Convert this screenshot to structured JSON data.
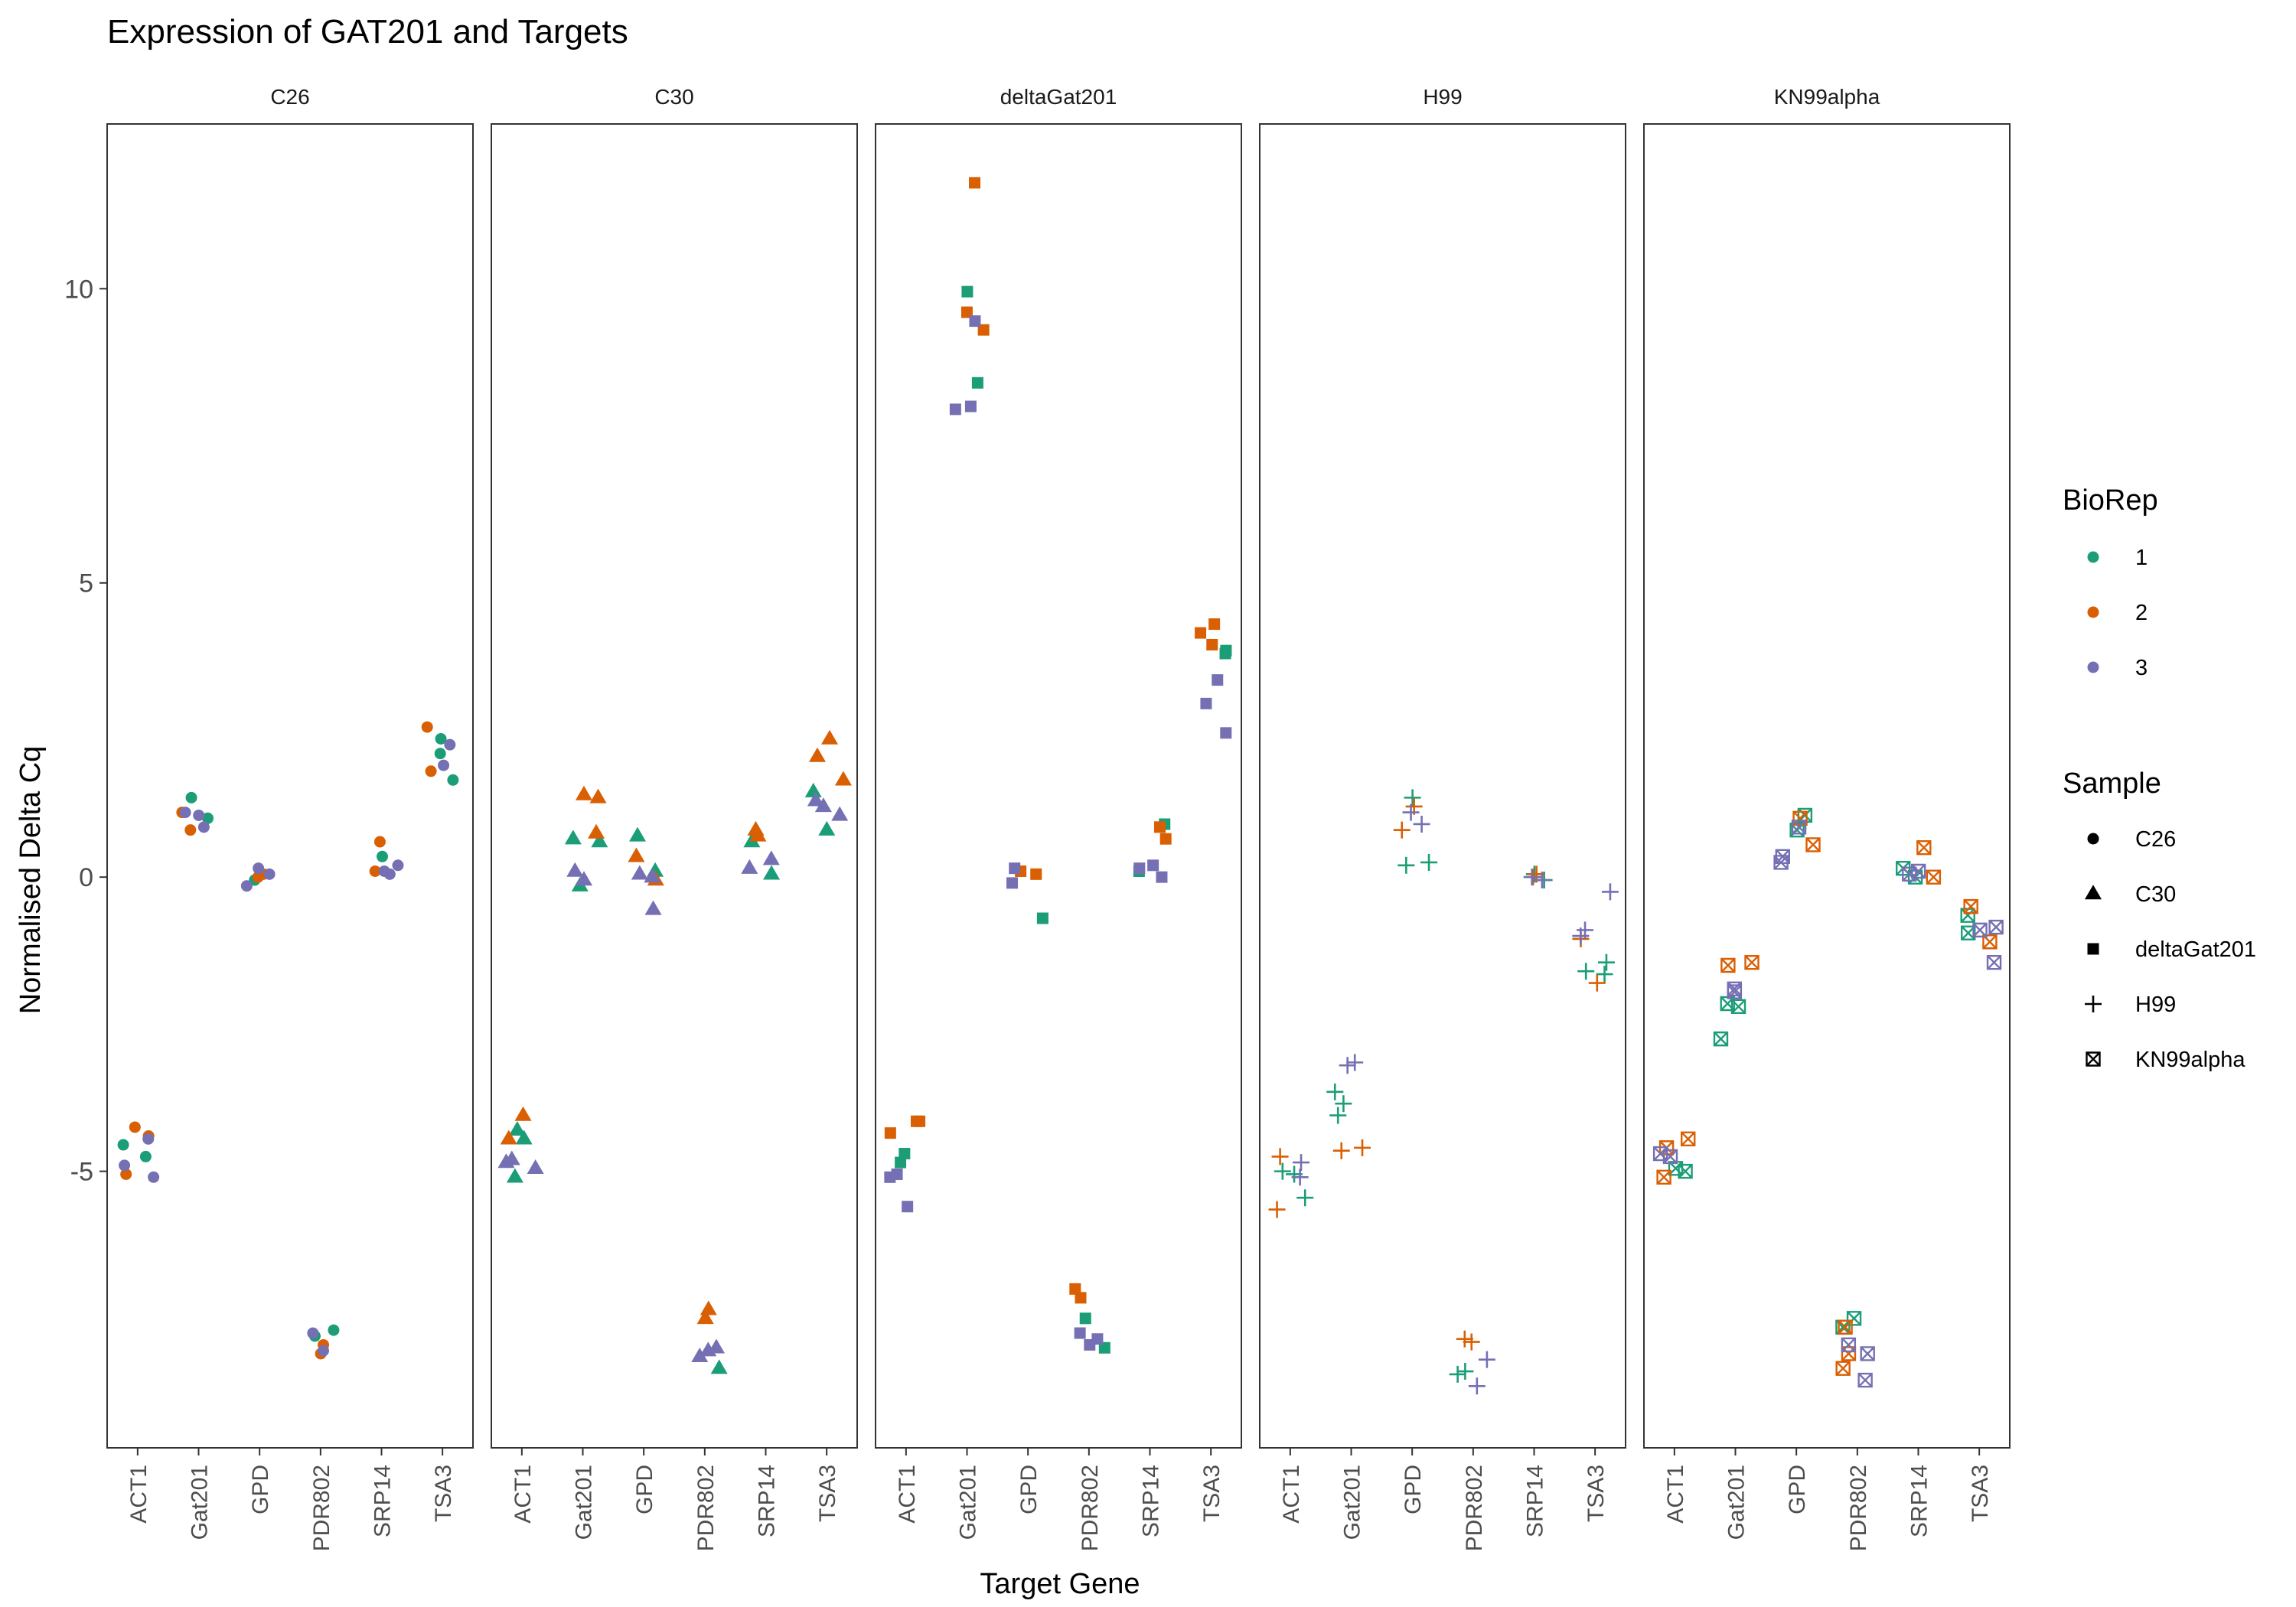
{
  "chart_data": {
    "type": "scatter",
    "title": "Expression of GAT201 and Targets",
    "xlabel": "Target Gene",
    "ylabel": "Normalised Delta Cq",
    "ylim": [
      -9.7,
      12.8
    ],
    "yticks": [
      -5,
      0,
      5,
      10
    ],
    "grid": false,
    "legend_position": "right",
    "categories": [
      "ACT1",
      "Gat201",
      "GPD",
      "PDR802",
      "SRP14",
      "TSA3"
    ],
    "panels": [
      "C26",
      "C30",
      "deltaGat201",
      "H99",
      "KN99alpha"
    ],
    "legends": {
      "biorep": {
        "title": "BioRep",
        "entries": [
          {
            "label": "1",
            "color": "#1b9e77"
          },
          {
            "label": "2",
            "color": "#d95f02"
          },
          {
            "label": "3",
            "color": "#7570b3"
          }
        ]
      },
      "sample": {
        "title": "Sample",
        "entries": [
          {
            "label": "C26",
            "shape": "circle"
          },
          {
            "label": "C30",
            "shape": "triangle"
          },
          {
            "label": "deltaGat201",
            "shape": "square"
          },
          {
            "label": "H99",
            "shape": "plus"
          },
          {
            "label": "KN99alpha",
            "shape": "boxcross"
          }
        ]
      }
    },
    "series": [
      {
        "panel": "C26",
        "shape": "circle",
        "data": [
          [
            "ACT1",
            1,
            -4.75
          ],
          [
            "ACT1",
            1,
            -4.55
          ],
          [
            "ACT1",
            2,
            -4.25
          ],
          [
            "ACT1",
            2,
            -4.4
          ],
          [
            "ACT1",
            2,
            -5.05
          ],
          [
            "ACT1",
            3,
            -4.45
          ],
          [
            "ACT1",
            3,
            -4.9
          ],
          [
            "ACT1",
            3,
            -5.1
          ],
          [
            "Gat201",
            1,
            1.35
          ],
          [
            "Gat201",
            1,
            1.0
          ],
          [
            "Gat201",
            2,
            1.1
          ],
          [
            "Gat201",
            2,
            0.8
          ],
          [
            "Gat201",
            3,
            0.85
          ],
          [
            "Gat201",
            3,
            1.05
          ],
          [
            "Gat201",
            3,
            1.1
          ],
          [
            "GPD",
            1,
            -0.05
          ],
          [
            "GPD",
            2,
            0.05
          ],
          [
            "GPD",
            2,
            0.0
          ],
          [
            "GPD",
            3,
            0.15
          ],
          [
            "GPD",
            3,
            -0.15
          ],
          [
            "GPD",
            3,
            0.05
          ],
          [
            "PDR802",
            1,
            -7.7
          ],
          [
            "PDR802",
            1,
            -7.8
          ],
          [
            "PDR802",
            2,
            -8.1
          ],
          [
            "PDR802",
            2,
            -7.95
          ],
          [
            "PDR802",
            3,
            -7.75
          ],
          [
            "PDR802",
            3,
            -8.05
          ],
          [
            "SRP14",
            1,
            0.35
          ],
          [
            "SRP14",
            2,
            0.6
          ],
          [
            "SRP14",
            2,
            0.1
          ],
          [
            "SRP14",
            3,
            0.2
          ],
          [
            "SRP14",
            3,
            0.05
          ],
          [
            "SRP14",
            3,
            0.1
          ],
          [
            "TSA3",
            1,
            2.35
          ],
          [
            "TSA3",
            1,
            2.1
          ],
          [
            "TSA3",
            1,
            1.65
          ],
          [
            "TSA3",
            2,
            2.55
          ],
          [
            "TSA3",
            2,
            1.8
          ],
          [
            "TSA3",
            3,
            1.9
          ],
          [
            "TSA3",
            3,
            2.25
          ]
        ]
      },
      {
        "panel": "C30",
        "shape": "triangle",
        "data": [
          [
            "ACT1",
            1,
            -4.45
          ],
          [
            "ACT1",
            1,
            -4.3
          ],
          [
            "ACT1",
            1,
            -5.1
          ],
          [
            "ACT1",
            2,
            -4.05
          ],
          [
            "ACT1",
            2,
            -4.45
          ],
          [
            "ACT1",
            3,
            -4.85
          ],
          [
            "ACT1",
            3,
            -4.95
          ],
          [
            "ACT1",
            3,
            -4.8
          ],
          [
            "Gat201",
            1,
            -0.15
          ],
          [
            "Gat201",
            1,
            0.6
          ],
          [
            "Gat201",
            1,
            0.65
          ],
          [
            "Gat201",
            2,
            1.4
          ],
          [
            "Gat201",
            2,
            1.35
          ],
          [
            "Gat201",
            2,
            0.75
          ],
          [
            "Gat201",
            3,
            0.1
          ],
          [
            "Gat201",
            3,
            -0.05
          ],
          [
            "GPD",
            1,
            0.1
          ],
          [
            "GPD",
            1,
            0.7
          ],
          [
            "GPD",
            2,
            -0.05
          ],
          [
            "GPD",
            2,
            0.35
          ],
          [
            "GPD",
            3,
            -0.55
          ],
          [
            "GPD",
            3,
            0.05
          ],
          [
            "GPD",
            3,
            0.0
          ],
          [
            "PDR802",
            1,
            -8.35
          ],
          [
            "PDR802",
            2,
            -7.5
          ],
          [
            "PDR802",
            2,
            -7.35
          ],
          [
            "PDR802",
            3,
            -8.15
          ],
          [
            "PDR802",
            3,
            -8.0
          ],
          [
            "PDR802",
            3,
            -8.05
          ],
          [
            "SRP14",
            1,
            0.6
          ],
          [
            "SRP14",
            1,
            0.05
          ],
          [
            "SRP14",
            2,
            0.8
          ],
          [
            "SRP14",
            2,
            0.7
          ],
          [
            "SRP14",
            3,
            0.3
          ],
          [
            "SRP14",
            3,
            0.15
          ],
          [
            "TSA3",
            1,
            0.8
          ],
          [
            "TSA3",
            1,
            1.45
          ],
          [
            "TSA3",
            2,
            2.35
          ],
          [
            "TSA3",
            2,
            2.05
          ],
          [
            "TSA3",
            2,
            1.65
          ],
          [
            "TSA3",
            3,
            1.2
          ],
          [
            "TSA3",
            3,
            1.05
          ],
          [
            "TSA3",
            3,
            1.3
          ]
        ]
      },
      {
        "panel": "deltaGat201",
        "shape": "square",
        "data": [
          [
            "ACT1",
            1,
            -4.7
          ],
          [
            "ACT1",
            1,
            -4.85
          ],
          [
            "ACT1",
            2,
            -4.15
          ],
          [
            "ACT1",
            2,
            -4.35
          ],
          [
            "ACT1",
            2,
            -4.15
          ],
          [
            "ACT1",
            3,
            -5.1
          ],
          [
            "ACT1",
            3,
            -5.6
          ],
          [
            "ACT1",
            3,
            -5.05
          ],
          [
            "Gat201",
            1,
            9.95
          ],
          [
            "Gat201",
            1,
            8.4
          ],
          [
            "Gat201",
            2,
            11.8
          ],
          [
            "Gat201",
            2,
            9.3
          ],
          [
            "Gat201",
            2,
            9.6
          ],
          [
            "Gat201",
            3,
            9.45
          ],
          [
            "Gat201",
            3,
            7.95
          ],
          [
            "Gat201",
            3,
            8.0
          ],
          [
            "GPD",
            1,
            -0.7
          ],
          [
            "GPD",
            2,
            0.1
          ],
          [
            "GPD",
            2,
            0.05
          ],
          [
            "GPD",
            3,
            -0.1
          ],
          [
            "GPD",
            3,
            0.15
          ],
          [
            "PDR802",
            1,
            -7.5
          ],
          [
            "PDR802",
            1,
            -8.0
          ],
          [
            "PDR802",
            2,
            -7.0
          ],
          [
            "PDR802",
            2,
            -7.15
          ],
          [
            "PDR802",
            3,
            -7.75
          ],
          [
            "PDR802",
            3,
            -7.85
          ],
          [
            "PDR802",
            3,
            -7.95
          ],
          [
            "SRP14",
            1,
            0.9
          ],
          [
            "SRP14",
            1,
            0.1
          ],
          [
            "SRP14",
            2,
            0.85
          ],
          [
            "SRP14",
            2,
            0.65
          ],
          [
            "SRP14",
            3,
            0.15
          ],
          [
            "SRP14",
            3,
            0.2
          ],
          [
            "SRP14",
            3,
            0.0
          ],
          [
            "TSA3",
            1,
            3.85
          ],
          [
            "TSA3",
            1,
            3.8
          ],
          [
            "TSA3",
            2,
            4.3
          ],
          [
            "TSA3",
            2,
            4.15
          ],
          [
            "TSA3",
            2,
            3.95
          ],
          [
            "TSA3",
            3,
            3.35
          ],
          [
            "TSA3",
            3,
            2.95
          ],
          [
            "TSA3",
            3,
            2.45
          ]
        ]
      },
      {
        "panel": "H99",
        "shape": "plus",
        "data": [
          [
            "ACT1",
            1,
            -5.0
          ],
          [
            "ACT1",
            1,
            -5.45
          ],
          [
            "ACT1",
            1,
            -5.05
          ],
          [
            "ACT1",
            2,
            -5.65
          ],
          [
            "ACT1",
            2,
            -4.75
          ],
          [
            "ACT1",
            3,
            -4.85
          ],
          [
            "ACT1",
            3,
            -5.1
          ],
          [
            "Gat201",
            1,
            -3.65
          ],
          [
            "Gat201",
            1,
            -4.05
          ],
          [
            "Gat201",
            1,
            -3.85
          ],
          [
            "Gat201",
            2,
            -4.6
          ],
          [
            "Gat201",
            2,
            -4.65
          ],
          [
            "Gat201",
            3,
            -3.2
          ],
          [
            "Gat201",
            3,
            -3.15
          ],
          [
            "GPD",
            1,
            1.35
          ],
          [
            "GPD",
            1,
            0.2
          ],
          [
            "GPD",
            1,
            0.25
          ],
          [
            "GPD",
            2,
            1.2
          ],
          [
            "GPD",
            2,
            0.8
          ],
          [
            "GPD",
            3,
            0.9
          ],
          [
            "GPD",
            3,
            1.1
          ],
          [
            "PDR802",
            1,
            -8.45
          ],
          [
            "PDR802",
            1,
            -8.4
          ],
          [
            "PDR802",
            2,
            -7.9
          ],
          [
            "PDR802",
            2,
            -7.85
          ],
          [
            "PDR802",
            3,
            -8.2
          ],
          [
            "PDR802",
            3,
            -8.65
          ],
          [
            "SRP14",
            1,
            0.05
          ],
          [
            "SRP14",
            1,
            -0.05
          ],
          [
            "SRP14",
            2,
            0.0
          ],
          [
            "SRP14",
            2,
            0.05
          ],
          [
            "SRP14",
            3,
            -0.05
          ],
          [
            "SRP14",
            3,
            0.0
          ],
          [
            "TSA3",
            1,
            -1.6
          ],
          [
            "TSA3",
            1,
            -1.45
          ],
          [
            "TSA3",
            1,
            -1.65
          ],
          [
            "TSA3",
            2,
            -1.05
          ],
          [
            "TSA3",
            2,
            -1.8
          ],
          [
            "TSA3",
            3,
            -0.25
          ],
          [
            "TSA3",
            3,
            -0.9
          ],
          [
            "TSA3",
            3,
            -1.0
          ]
        ]
      },
      {
        "panel": "KN99alpha",
        "shape": "boxcross",
        "data": [
          [
            "ACT1",
            1,
            -5.0
          ],
          [
            "ACT1",
            1,
            -4.95
          ],
          [
            "ACT1",
            2,
            -4.45
          ],
          [
            "ACT1",
            2,
            -4.6
          ],
          [
            "ACT1",
            2,
            -5.1
          ],
          [
            "ACT1",
            3,
            -4.7
          ],
          [
            "ACT1",
            3,
            -4.75
          ],
          [
            "Gat201",
            1,
            -2.75
          ],
          [
            "Gat201",
            1,
            -2.2
          ],
          [
            "Gat201",
            1,
            -2.15
          ],
          [
            "Gat201",
            2,
            -1.45
          ],
          [
            "Gat201",
            2,
            -1.5
          ],
          [
            "Gat201",
            3,
            -1.9
          ],
          [
            "Gat201",
            3,
            -1.95
          ],
          [
            "GPD",
            1,
            1.05
          ],
          [
            "GPD",
            1,
            0.8
          ],
          [
            "GPD",
            2,
            0.55
          ],
          [
            "GPD",
            2,
            1.0
          ],
          [
            "GPD",
            3,
            0.35
          ],
          [
            "GPD",
            3,
            0.25
          ],
          [
            "GPD",
            3,
            0.85
          ],
          [
            "PDR802",
            1,
            -7.65
          ],
          [
            "PDR802",
            1,
            -7.5
          ],
          [
            "PDR802",
            2,
            -7.65
          ],
          [
            "PDR802",
            2,
            -8.1
          ],
          [
            "PDR802",
            2,
            -8.35
          ],
          [
            "PDR802",
            3,
            -8.55
          ],
          [
            "PDR802",
            3,
            -7.95
          ],
          [
            "PDR802",
            3,
            -8.1
          ],
          [
            "SRP14",
            1,
            0.15
          ],
          [
            "SRP14",
            1,
            0.0
          ],
          [
            "SRP14",
            2,
            0.5
          ],
          [
            "SRP14",
            2,
            0.0
          ],
          [
            "SRP14",
            3,
            0.05
          ],
          [
            "SRP14",
            3,
            0.1
          ],
          [
            "TSA3",
            1,
            -0.65
          ],
          [
            "TSA3",
            1,
            -0.95
          ],
          [
            "TSA3",
            2,
            -0.5
          ],
          [
            "TSA3",
            2,
            -1.1
          ],
          [
            "TSA3",
            3,
            -0.85
          ],
          [
            "TSA3",
            3,
            -1.45
          ],
          [
            "TSA3",
            3,
            -0.9
          ]
        ]
      }
    ]
  }
}
